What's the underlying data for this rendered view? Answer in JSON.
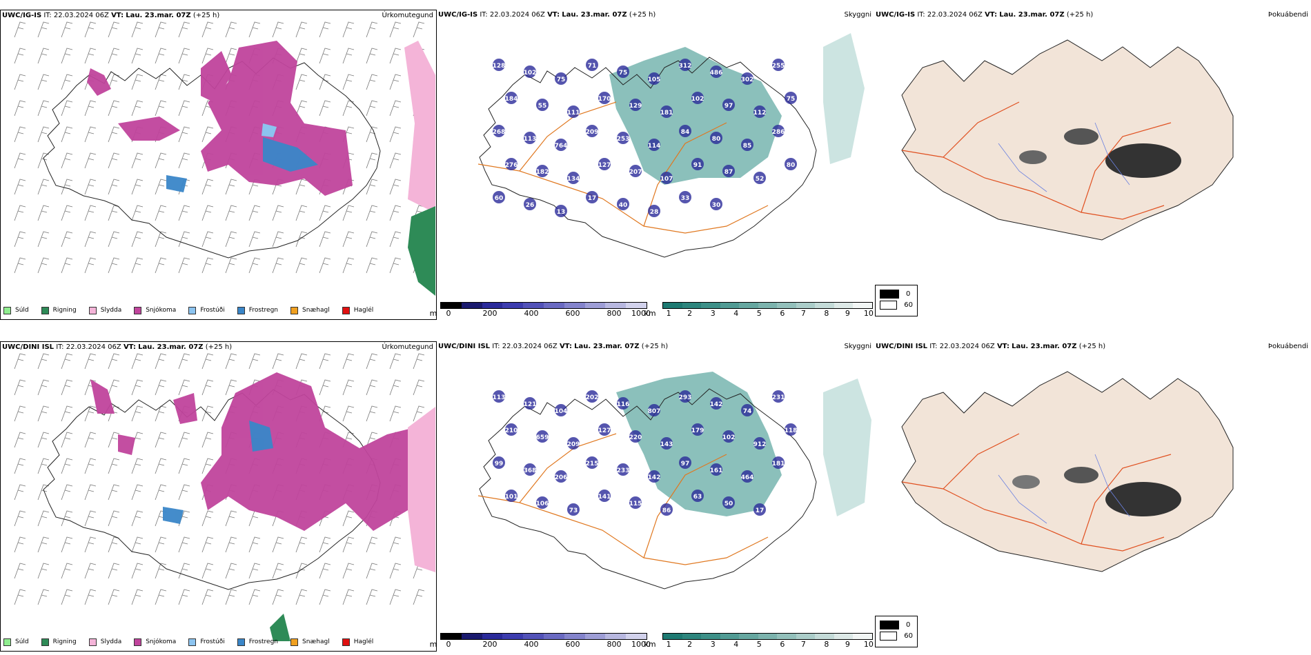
{
  "rows": [
    {
      "panels": {
        "precip": {
          "model": "UWC/IG-IS",
          "it_label": "IT:",
          "it_value": "22.03.2024 06Z",
          "vt_label": "VT:",
          "vt_value": "Lau. 23.mar. 07Z",
          "lead": "(+25 h)",
          "title": "Úrkomutegund"
        },
        "cloud": {
          "model": "UWC/IG-IS",
          "it_label": "IT:",
          "it_value": "22.03.2024 06Z",
          "vt_label": "VT:",
          "vt_value": "Lau. 23.mar. 07Z",
          "lead": "(+25 h)",
          "title": "Skyggni",
          "cloud_base_labels": [
            "128",
            "102",
            "75",
            "71",
            "75",
            "105",
            "312",
            "486",
            "302",
            "255",
            "184",
            "55",
            "111",
            "170",
            "129",
            "181",
            "102",
            "97",
            "112",
            "75",
            "268",
            "113",
            "764",
            "209",
            "253",
            "114",
            "84",
            "80",
            "85",
            "286",
            "276",
            "182",
            "134",
            "127",
            "207",
            "107",
            "91",
            "87",
            "52",
            "80",
            "60",
            "26",
            "13",
            "17",
            "40",
            "28",
            "33",
            "30"
          ]
        },
        "fog": {
          "model": "UWC/IG-IS",
          "it_label": "IT:",
          "it_value": "22.03.2024 06Z",
          "vt_label": "VT:",
          "vt_value": "Lau. 23.mar. 07Z",
          "lead": "(+25 h)",
          "title": "Þokuábendi"
        }
      }
    },
    {
      "panels": {
        "precip": {
          "model": "UWC/DINI ISL",
          "it_label": "IT:",
          "it_value": "22.03.2024 06Z",
          "vt_label": "VT:",
          "vt_value": "Lau. 23.mar. 07Z",
          "lead": "(+25 h)",
          "title": "Úrkomutegund"
        },
        "cloud": {
          "model": "UWC/DINI ISL",
          "it_label": "IT:",
          "it_value": "22.03.2024 06Z",
          "vt_label": "VT:",
          "vt_value": "Lau. 23.mar. 07Z",
          "lead": "(+25 h)",
          "title": "Skyggni",
          "cloud_base_labels": [
            "113",
            "121",
            "104",
            "202",
            "116",
            "807",
            "293",
            "142",
            "74",
            "231",
            "210",
            "659",
            "209",
            "127",
            "220",
            "143",
            "179",
            "102",
            "912",
            "118",
            "99",
            "368",
            "206",
            "215",
            "233",
            "142",
            "97",
            "161",
            "464",
            "181",
            "101",
            "106",
            "73",
            "141",
            "115",
            "86",
            "63",
            "50",
            "17"
          ]
        },
        "fog": {
          "model": "UWC/DINI ISL",
          "it_label": "IT:",
          "it_value": "22.03.2024 06Z",
          "vt_label": "VT:",
          "vt_value": "Lau. 23.mar. 07Z",
          "lead": "(+25 h)",
          "title": "Þokuábendi"
        }
      }
    }
  ],
  "precip_legend": [
    {
      "label": "Súld",
      "color": "#90ee90"
    },
    {
      "label": "Rigning",
      "color": "#2e8b57"
    },
    {
      "label": "Slydda",
      "color": "#f4b4d8"
    },
    {
      "label": "Snjókoma",
      "color": "#c0449c"
    },
    {
      "label": "Frostúði",
      "color": "#8cc4f0"
    },
    {
      "label": "Frostregn",
      "color": "#3a86c8"
    },
    {
      "label": "Snæhagl",
      "color": "#f0a020"
    },
    {
      "label": "Haglél",
      "color": "#e01010"
    }
  ],
  "cloud_base_bar": {
    "unit": "m",
    "ticks": [
      "0",
      "200",
      "400",
      "600",
      "800",
      "1000"
    ],
    "colors": [
      "#000000",
      "#1a1a6e",
      "#2a2a9a",
      "#3c3cae",
      "#5252b8",
      "#6a6ac2",
      "#8484cc",
      "#9e9ed6",
      "#b8b8e0",
      "#d2d2ec"
    ]
  },
  "visibility_bar": {
    "unit": "km",
    "ticks": [
      "1",
      "2",
      "3",
      "4",
      "5",
      "6",
      "7",
      "8",
      "9",
      "10"
    ],
    "colors": [
      "#1e7a72",
      "#2d857d",
      "#3d9088",
      "#519b94",
      "#66a7a0",
      "#7cb3ad",
      "#93c0bb",
      "#abcdc9",
      "#c4dbd8",
      "#dde9e7",
      "#f2f6f5"
    ]
  },
  "fog_legend": [
    {
      "label": "0",
      "color": "#000000"
    },
    {
      "label": "60",
      "color": "#ffffff"
    }
  ]
}
